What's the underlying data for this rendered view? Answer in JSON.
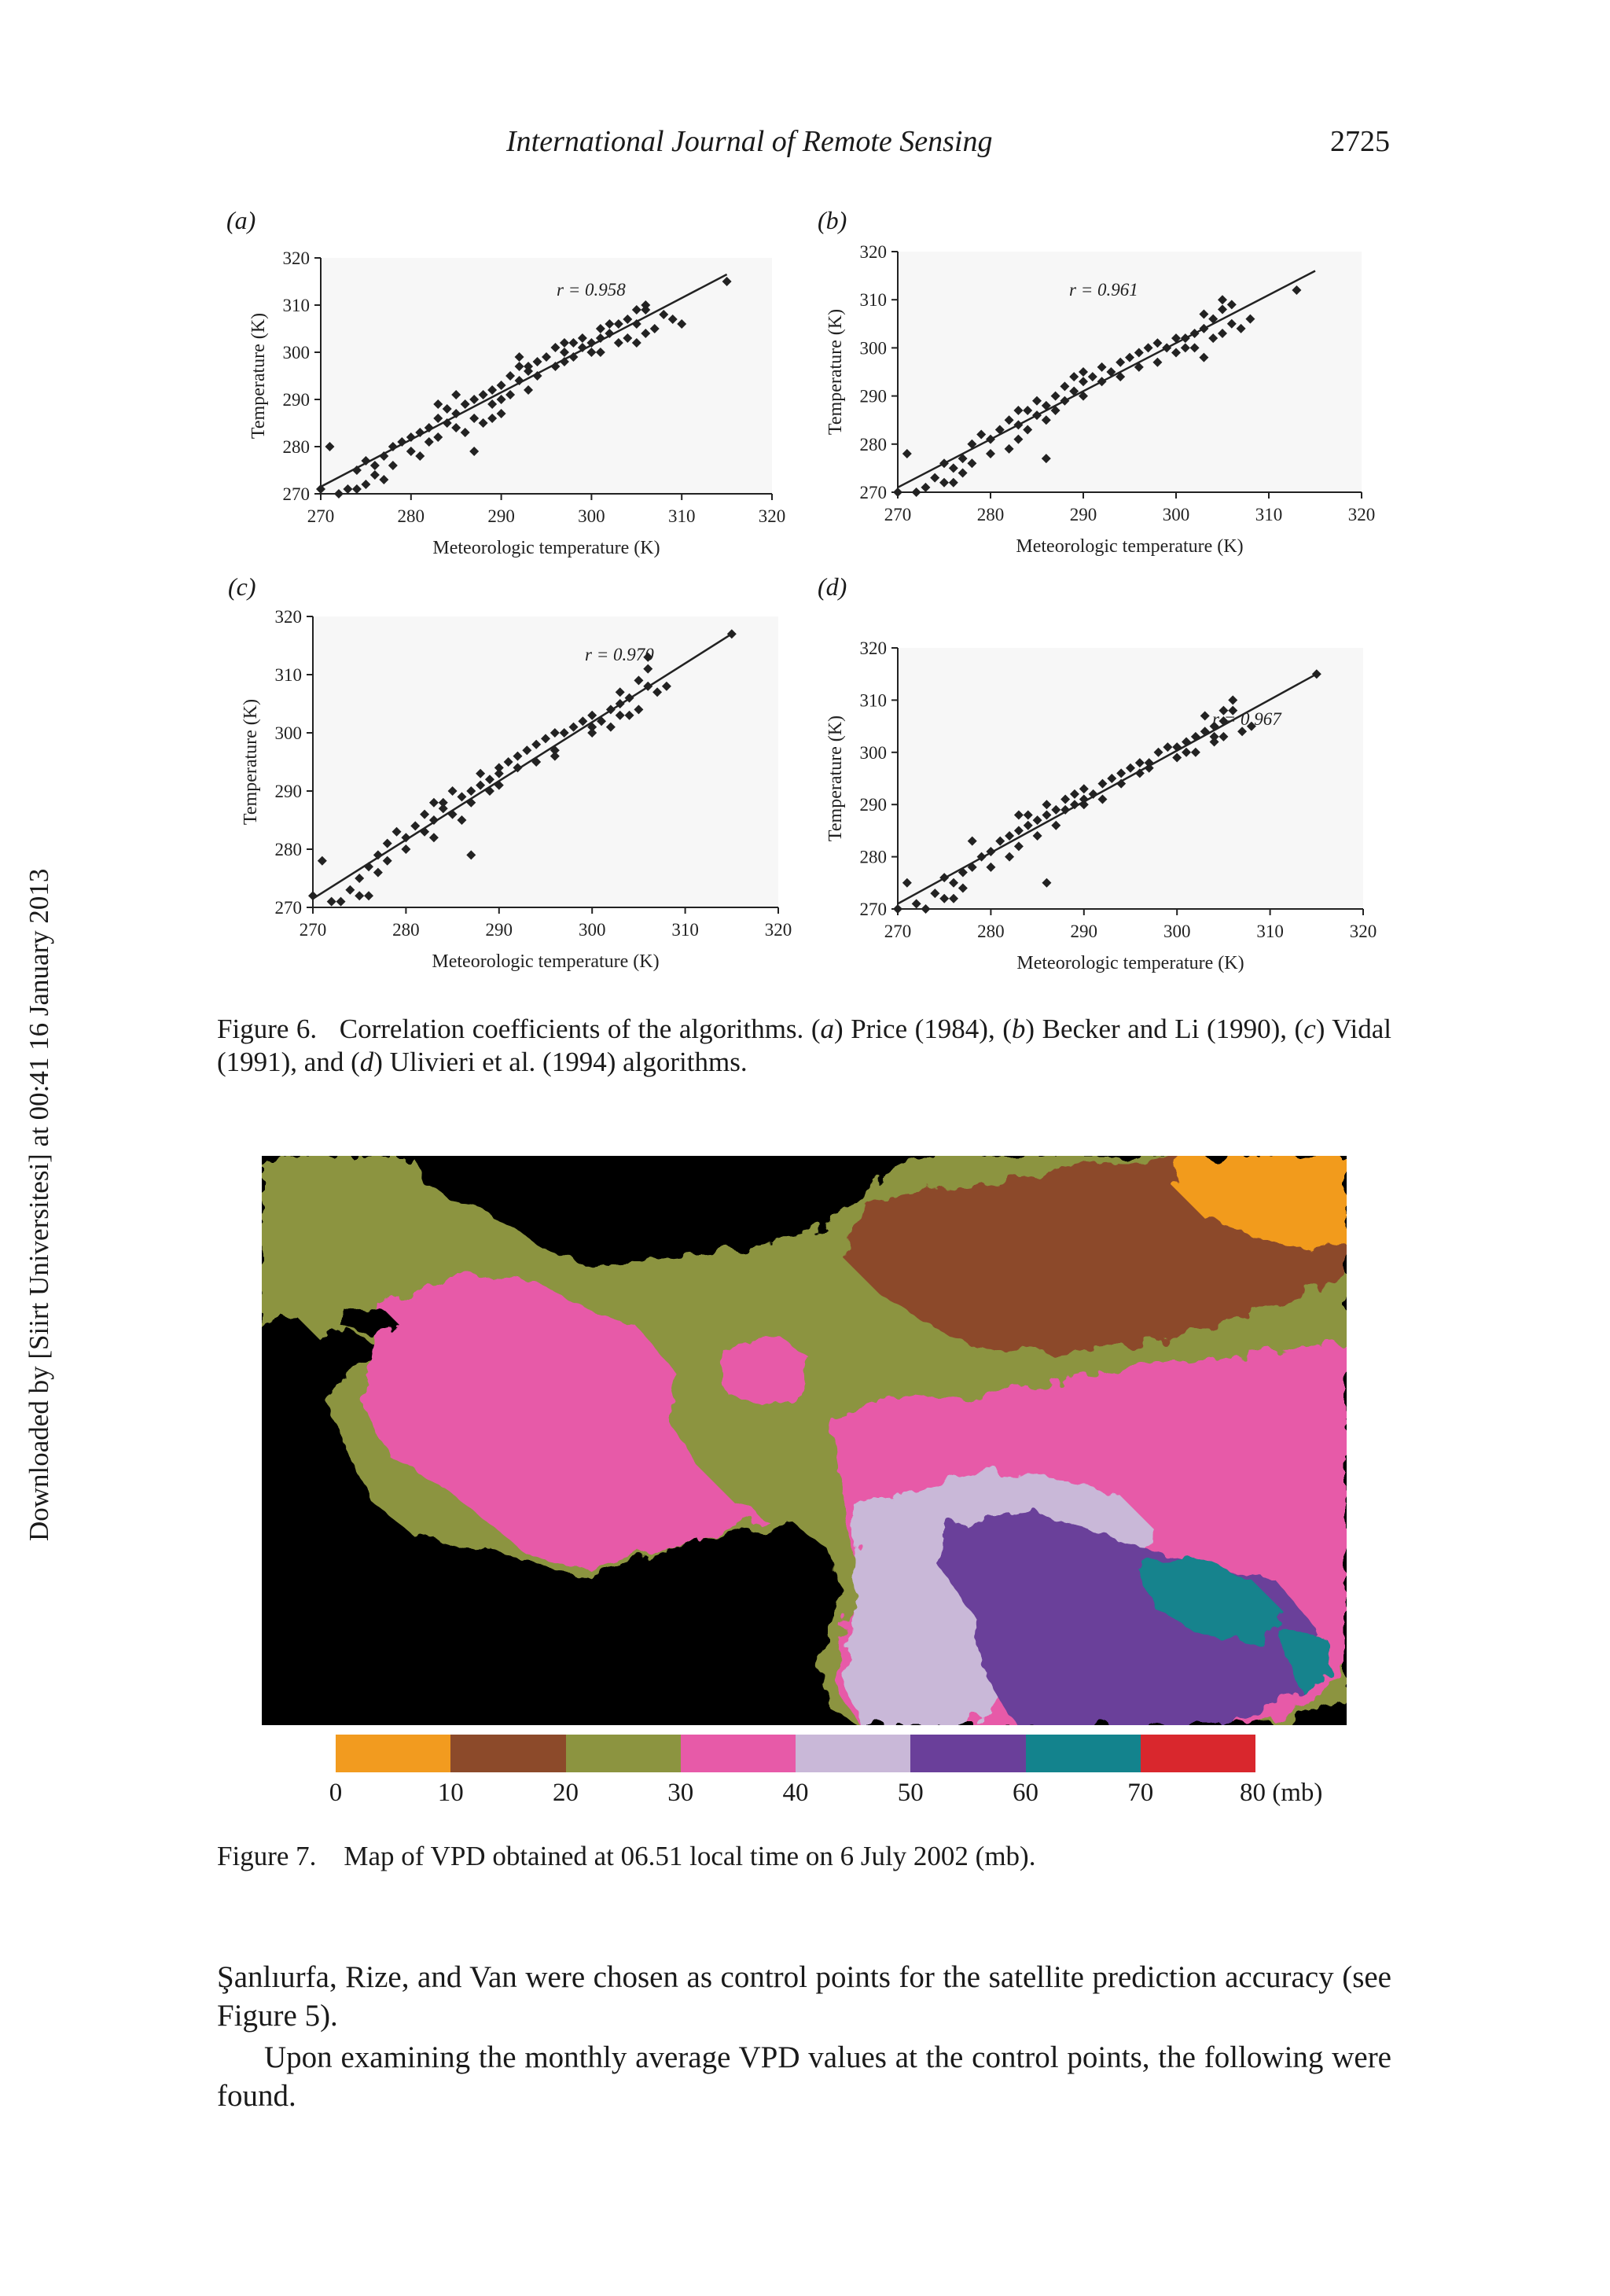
{
  "header": {
    "journal": "International Journal of Remote Sensing",
    "page": "2725"
  },
  "side_note": "Downloaded by [Siirt Universitesi] at 00:41 16 January 2013",
  "figure6": {
    "caption_label": "Figure 6.",
    "caption_segments": [
      {
        "t": "Correlation coefficients of the algorithms. (",
        "i": false
      },
      {
        "t": "a",
        "i": true
      },
      {
        "t": ") Price (1984), (",
        "i": false
      },
      {
        "t": "b",
        "i": true
      },
      {
        "t": ") Becker and Li (1990), (",
        "i": false
      },
      {
        "t": "c",
        "i": true
      },
      {
        "t": ") Vidal (1991), and (",
        "i": false
      },
      {
        "t": "d",
        "i": true
      },
      {
        "t": ") Ulivieri et al. (1994) algorithms.",
        "i": false
      }
    ]
  },
  "chart_data": [
    {
      "type": "scatter",
      "panel": "(a)",
      "xlabel": "Meteorologic temperature (K)",
      "ylabel": "Temperature (K)",
      "xlim": [
        270,
        320
      ],
      "ylim": [
        270,
        320
      ],
      "xticks": [
        "270",
        "280",
        "290",
        "300",
        "310",
        "320"
      ],
      "yticks": [
        "270",
        "280",
        "290",
        "300",
        "310",
        "320"
      ],
      "annotation": "r = 0.958",
      "trend": [
        [
          270,
          271.5
        ],
        [
          315,
          316.5
        ]
      ],
      "points": [
        [
          270,
          271
        ],
        [
          271,
          280
        ],
        [
          272,
          270
        ],
        [
          273,
          271
        ],
        [
          274,
          275
        ],
        [
          275,
          277
        ],
        [
          275,
          272
        ],
        [
          276,
          276
        ],
        [
          276,
          274
        ],
        [
          277,
          278
        ],
        [
          278,
          276
        ],
        [
          278,
          280
        ],
        [
          279,
          281
        ],
        [
          280,
          282
        ],
        [
          280,
          279
        ],
        [
          281,
          283
        ],
        [
          282,
          284
        ],
        [
          282,
          281
        ],
        [
          283,
          286
        ],
        [
          283,
          282
        ],
        [
          284,
          285
        ],
        [
          284,
          288
        ],
        [
          285,
          287
        ],
        [
          285,
          284
        ],
        [
          286,
          289
        ],
        [
          286,
          283
        ],
        [
          287,
          290
        ],
        [
          287,
          286
        ],
        [
          288,
          291
        ],
        [
          288,
          285
        ],
        [
          289,
          292
        ],
        [
          289,
          289
        ],
        [
          290,
          293
        ],
        [
          290,
          290
        ],
        [
          291,
          295
        ],
        [
          291,
          291
        ],
        [
          292,
          294
        ],
        [
          292,
          297
        ],
        [
          293,
          296
        ],
        [
          293,
          292
        ],
        [
          294,
          298
        ],
        [
          294,
          295
        ],
        [
          295,
          299
        ],
        [
          296,
          297
        ],
        [
          297,
          300
        ],
        [
          297,
          298
        ],
        [
          298,
          302
        ],
        [
          298,
          299
        ],
        [
          299,
          301
        ],
        [
          299,
          303
        ],
        [
          300,
          302
        ],
        [
          300,
          300
        ],
        [
          301,
          305
        ],
        [
          301,
          303
        ],
        [
          302,
          304
        ],
        [
          303,
          306
        ],
        [
          303,
          302
        ],
        [
          304,
          307
        ],
        [
          304,
          303
        ],
        [
          305,
          306
        ],
        [
          305,
          309
        ],
        [
          306,
          310
        ],
        [
          306,
          304
        ],
        [
          307,
          305
        ],
        [
          308,
          308
        ],
        [
          309,
          307
        ],
        [
          310,
          306
        ],
        [
          315,
          315
        ],
        [
          277,
          273
        ],
        [
          283,
          289
        ],
        [
          287,
          279
        ],
        [
          290,
          287
        ],
        [
          292,
          299
        ],
        [
          296,
          301
        ],
        [
          301,
          300
        ],
        [
          305,
          302
        ],
        [
          274,
          271
        ],
        [
          281,
          278
        ],
        [
          285,
          291
        ],
        [
          289,
          286
        ],
        [
          293,
          297
        ],
        [
          297,
          302
        ],
        [
          302,
          306
        ],
        [
          306,
          309
        ]
      ]
    },
    {
      "type": "scatter",
      "panel": "(b)",
      "xlabel": "Meteorologic temperature (K)",
      "ylabel": "Temperature (K)",
      "xlim": [
        270,
        320
      ],
      "ylim": [
        270,
        320
      ],
      "xticks": [
        "270",
        "280",
        "290",
        "300",
        "310",
        "320"
      ],
      "yticks": [
        "270",
        "280",
        "290",
        "300",
        "310",
        "320"
      ],
      "annotation": "r = 0.961",
      "trend": [
        [
          270,
          271
        ],
        [
          315,
          316
        ]
      ],
      "points": [
        [
          270,
          270
        ],
        [
          271,
          278
        ],
        [
          272,
          270
        ],
        [
          273,
          271
        ],
        [
          274,
          273
        ],
        [
          275,
          276
        ],
        [
          275,
          272
        ],
        [
          276,
          275
        ],
        [
          277,
          274
        ],
        [
          277,
          277
        ],
        [
          278,
          276
        ],
        [
          278,
          280
        ],
        [
          279,
          282
        ],
        [
          280,
          281
        ],
        [
          280,
          278
        ],
        [
          281,
          283
        ],
        [
          282,
          279
        ],
        [
          282,
          285
        ],
        [
          283,
          284
        ],
        [
          283,
          281
        ],
        [
          284,
          287
        ],
        [
          284,
          283
        ],
        [
          285,
          286
        ],
        [
          285,
          289
        ],
        [
          286,
          285
        ],
        [
          286,
          288
        ],
        [
          287,
          290
        ],
        [
          287,
          287
        ],
        [
          288,
          292
        ],
        [
          288,
          289
        ],
        [
          289,
          291
        ],
        [
          289,
          294
        ],
        [
          290,
          293
        ],
        [
          290,
          290
        ],
        [
          291,
          294
        ],
        [
          292,
          296
        ],
        [
          292,
          293
        ],
        [
          293,
          295
        ],
        [
          294,
          297
        ],
        [
          294,
          294
        ],
        [
          295,
          298
        ],
        [
          296,
          299
        ],
        [
          296,
          296
        ],
        [
          297,
          300
        ],
        [
          298,
          301
        ],
        [
          299,
          300
        ],
        [
          300,
          302
        ],
        [
          300,
          299
        ],
        [
          301,
          302
        ],
        [
          302,
          303
        ],
        [
          302,
          300
        ],
        [
          303,
          304
        ],
        [
          303,
          307
        ],
        [
          304,
          306
        ],
        [
          304,
          302
        ],
        [
          305,
          308
        ],
        [
          305,
          303
        ],
        [
          306,
          305
        ],
        [
          306,
          309
        ],
        [
          307,
          304
        ],
        [
          308,
          306
        ],
        [
          313,
          312
        ],
        [
          276,
          272
        ],
        [
          283,
          287
        ],
        [
          286,
          277
        ],
        [
          290,
          295
        ],
        [
          298,
          297
        ],
        [
          301,
          300
        ],
        [
          303,
          298
        ],
        [
          305,
          310
        ]
      ]
    },
    {
      "type": "scatter",
      "panel": "(c)",
      "xlabel": "Meteorologic temperature (K)",
      "ylabel": "Temperature (K)",
      "xlim": [
        270,
        320
      ],
      "ylim": [
        270,
        320
      ],
      "xticks": [
        "270",
        "280",
        "290",
        "300",
        "310",
        "320"
      ],
      "yticks": [
        "270",
        "280",
        "290",
        "300",
        "310",
        "320"
      ],
      "annotation": "r = 0.970",
      "trend": [
        [
          270,
          271.5
        ],
        [
          315,
          317
        ]
      ],
      "points": [
        [
          270,
          272
        ],
        [
          271,
          278
        ],
        [
          272,
          271
        ],
        [
          273,
          271
        ],
        [
          274,
          273
        ],
        [
          275,
          275
        ],
        [
          275,
          272
        ],
        [
          276,
          277
        ],
        [
          277,
          276
        ],
        [
          277,
          279
        ],
        [
          278,
          278
        ],
        [
          278,
          281
        ],
        [
          279,
          283
        ],
        [
          280,
          282
        ],
        [
          280,
          280
        ],
        [
          281,
          284
        ],
        [
          282,
          283
        ],
        [
          282,
          286
        ],
        [
          283,
          285
        ],
        [
          283,
          282
        ],
        [
          284,
          287
        ],
        [
          284,
          288
        ],
        [
          285,
          286
        ],
        [
          285,
          290
        ],
        [
          286,
          289
        ],
        [
          286,
          285
        ],
        [
          287,
          290
        ],
        [
          287,
          288
        ],
        [
          288,
          291
        ],
        [
          288,
          293
        ],
        [
          289,
          292
        ],
        [
          289,
          290
        ],
        [
          290,
          294
        ],
        [
          290,
          291
        ],
        [
          291,
          295
        ],
        [
          292,
          294
        ],
        [
          292,
          296
        ],
        [
          293,
          297
        ],
        [
          294,
          298
        ],
        [
          294,
          295
        ],
        [
          295,
          299
        ],
        [
          296,
          300
        ],
        [
          296,
          297
        ],
        [
          297,
          300
        ],
        [
          298,
          301
        ],
        [
          299,
          302
        ],
        [
          300,
          303
        ],
        [
          300,
          301
        ],
        [
          301,
          302
        ],
        [
          302,
          304
        ],
        [
          302,
          301
        ],
        [
          303,
          305
        ],
        [
          303,
          307
        ],
        [
          304,
          306
        ],
        [
          304,
          303
        ],
        [
          305,
          309
        ],
        [
          305,
          304
        ],
        [
          306,
          308
        ],
        [
          306,
          311
        ],
        [
          307,
          307
        ],
        [
          308,
          308
        ],
        [
          315,
          317
        ],
        [
          276,
          272
        ],
        [
          283,
          288
        ],
        [
          287,
          279
        ],
        [
          290,
          293
        ],
        [
          296,
          296
        ],
        [
          300,
          300
        ],
        [
          303,
          303
        ],
        [
          306,
          313
        ]
      ]
    },
    {
      "type": "scatter",
      "panel": "(d)",
      "xlabel": "Meteorologic temperature (K)",
      "ylabel": "Temperature (K)",
      "xlim": [
        270,
        320
      ],
      "ylim": [
        270,
        320
      ],
      "xticks": [
        "270",
        "280",
        "290",
        "300",
        "310",
        "320"
      ],
      "yticks": [
        "270",
        "280",
        "290",
        "300",
        "310",
        "320"
      ],
      "annotation": "r = 0.967",
      "trend": [
        [
          270,
          271
        ],
        [
          315,
          315
        ]
      ],
      "points": [
        [
          270,
          270
        ],
        [
          271,
          275
        ],
        [
          272,
          271
        ],
        [
          273,
          270
        ],
        [
          274,
          273
        ],
        [
          275,
          276
        ],
        [
          275,
          272
        ],
        [
          276,
          275
        ],
        [
          277,
          277
        ],
        [
          277,
          274
        ],
        [
          278,
          278
        ],
        [
          278,
          283
        ],
        [
          279,
          280
        ],
        [
          280,
          281
        ],
        [
          280,
          278
        ],
        [
          281,
          283
        ],
        [
          282,
          284
        ],
        [
          282,
          280
        ],
        [
          283,
          285
        ],
        [
          283,
          282
        ],
        [
          284,
          286
        ],
        [
          284,
          288
        ],
        [
          285,
          287
        ],
        [
          285,
          284
        ],
        [
          286,
          288
        ],
        [
          286,
          290
        ],
        [
          287,
          289
        ],
        [
          287,
          286
        ],
        [
          288,
          291
        ],
        [
          288,
          289
        ],
        [
          289,
          290
        ],
        [
          289,
          292
        ],
        [
          290,
          293
        ],
        [
          290,
          290
        ],
        [
          291,
          292
        ],
        [
          292,
          294
        ],
        [
          292,
          291
        ],
        [
          293,
          295
        ],
        [
          294,
          294
        ],
        [
          294,
          296
        ],
        [
          295,
          297
        ],
        [
          296,
          298
        ],
        [
          296,
          296
        ],
        [
          297,
          298
        ],
        [
          298,
          300
        ],
        [
          299,
          301
        ],
        [
          300,
          301
        ],
        [
          300,
          299
        ],
        [
          301,
          302
        ],
        [
          302,
          303
        ],
        [
          302,
          300
        ],
        [
          303,
          304
        ],
        [
          303,
          307
        ],
        [
          304,
          305
        ],
        [
          304,
          302
        ],
        [
          305,
          306
        ],
        [
          305,
          303
        ],
        [
          306,
          308
        ],
        [
          306,
          310
        ],
        [
          307,
          304
        ],
        [
          308,
          305
        ],
        [
          315,
          315
        ],
        [
          276,
          272
        ],
        [
          283,
          288
        ],
        [
          286,
          275
        ],
        [
          290,
          291
        ],
        [
          297,
          297
        ],
        [
          301,
          300
        ],
        [
          304,
          303
        ],
        [
          305,
          308
        ]
      ]
    }
  ],
  "figure7": {
    "caption_label": "Figure 7.",
    "caption_text": "Map of VPD obtained at 06.51 local time on 6 July 2002 (mb).",
    "colorbar_colors": [
      "#f29b1f",
      "#8c4a2a",
      "#8c9440",
      "#e75aa8",
      "#c9b8d8",
      "#6a3f9a",
      "#13838d",
      "#d9272d"
    ],
    "colorbar_ticks": [
      "0",
      "10",
      "20",
      "30",
      "40",
      "50",
      "60",
      "70",
      "80 (mb)"
    ],
    "map_colors": {
      "sea": "#000000",
      "olive": "#8c9440",
      "pink": "#e75aa8",
      "brown": "#8c4a2a",
      "orange": "#f29b1f",
      "lavender": "#c9b8d8",
      "purple": "#6a3f9a",
      "teal": "#13838d"
    }
  },
  "body": {
    "p1": "Şanlıurfa, Rize, and Van were chosen as control points for the satellite prediction accuracy (see Figure 5).",
    "p2": "Upon examining the monthly average VPD values at the control points, the following were found."
  }
}
